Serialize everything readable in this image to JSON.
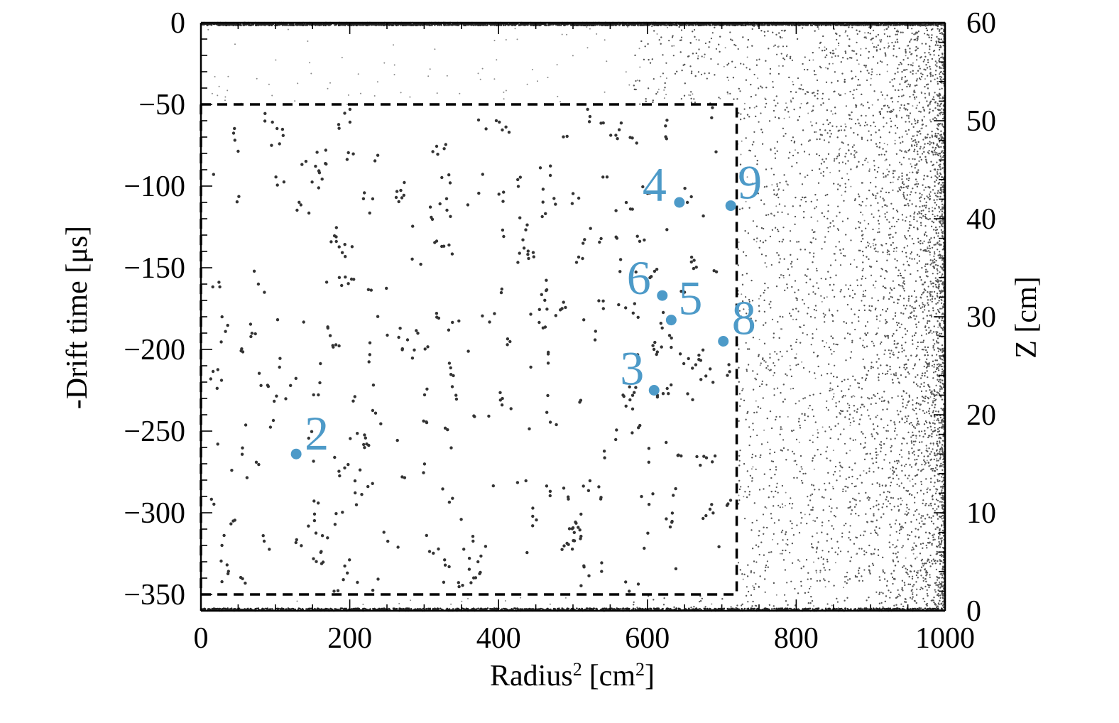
{
  "chart_data": {
    "type": "scatter",
    "xlabel": "Radius² [cm²]",
    "xlabel_main": "Radius",
    "xlabel_sup": "2",
    "xlabel_unit": "[cm",
    "xlabel_unit_sup": "2",
    "xlabel_unit_close": "]",
    "ylabel": "-Drift time [μs]",
    "ylabel_right": "Z [cm]",
    "xlim": [
      0,
      1000
    ],
    "ylim": [
      -360,
      0
    ],
    "ylim_right": [
      0,
      60
    ],
    "x_ticks": [
      0,
      200,
      400,
      600,
      800,
      1000
    ],
    "x_tick_labels": [
      "0",
      "200",
      "400",
      "600",
      "800",
      "1000"
    ],
    "y_ticks": [
      0,
      -50,
      -100,
      -150,
      -200,
      -250,
      -300,
      -350
    ],
    "y_tick_labels": [
      "0",
      "−50",
      "−100",
      "−150",
      "−200",
      "−250",
      "−300",
      "−350"
    ],
    "y_right_ticks": [
      0,
      10,
      20,
      30,
      40,
      50,
      60
    ],
    "y_right_tick_labels": [
      "0",
      "10",
      "20",
      "30",
      "40",
      "50",
      "60"
    ],
    "grid": false,
    "fiducial_cut": {
      "r2_max": 720,
      "t_min": -350,
      "t_max": -50
    },
    "background_density": "dense near top (0 μs), bottom (-360 μs) and at Radius² > 850 cm²; sparse inside fiducial box",
    "highlight_color": "#4d9ac8",
    "highlighted_events": [
      {
        "label": "2",
        "x": 128,
        "y": -264
      },
      {
        "label": "3",
        "x": 609,
        "y": -225
      },
      {
        "label": "4",
        "x": 643,
        "y": -110
      },
      {
        "label": "5",
        "x": 632,
        "y": -182
      },
      {
        "label": "6",
        "x": 620,
        "y": -167
      },
      {
        "label": "8",
        "x": 702,
        "y": -195
      },
      {
        "label": "9",
        "x": 712,
        "y": -112
      }
    ]
  }
}
